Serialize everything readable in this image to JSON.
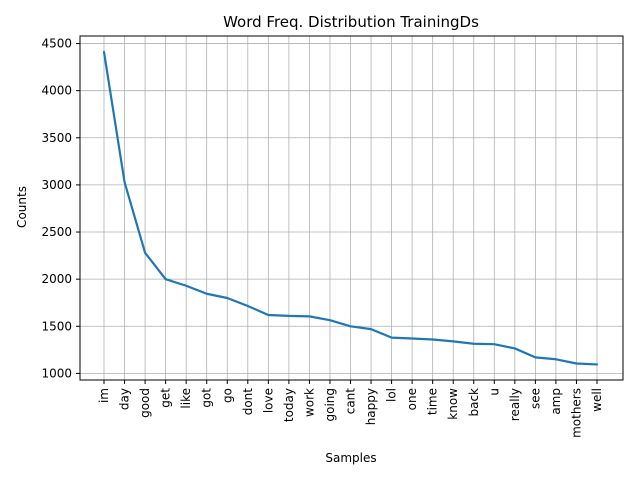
{
  "chart_data": {
    "type": "line",
    "title": "Word Freq. Distribution TrainingDs",
    "xlabel": "Samples",
    "ylabel": "Counts",
    "categories": [
      "im",
      "day",
      "good",
      "get",
      "like",
      "got",
      "go",
      "dont",
      "love",
      "today",
      "work",
      "going",
      "cant",
      "happy",
      "lol",
      "one",
      "time",
      "know",
      "back",
      "u",
      "really",
      "see",
      "amp",
      "mothers",
      "well"
    ],
    "series": [
      {
        "values": [
          4410,
          3030,
          2280,
          2000,
          1930,
          1845,
          1800,
          1715,
          1620,
          1610,
          1605,
          1565,
          1500,
          1470,
          1380,
          1370,
          1360,
          1340,
          1315,
          1310,
          1265,
          1170,
          1150,
          1105,
          1095
        ]
      }
    ],
    "ylim": [
      930,
      4580
    ],
    "yticks": [
      1000,
      1500,
      2000,
      2500,
      3000,
      3500,
      4000,
      4500
    ],
    "grid": true,
    "line_color": "#1f77b4"
  }
}
